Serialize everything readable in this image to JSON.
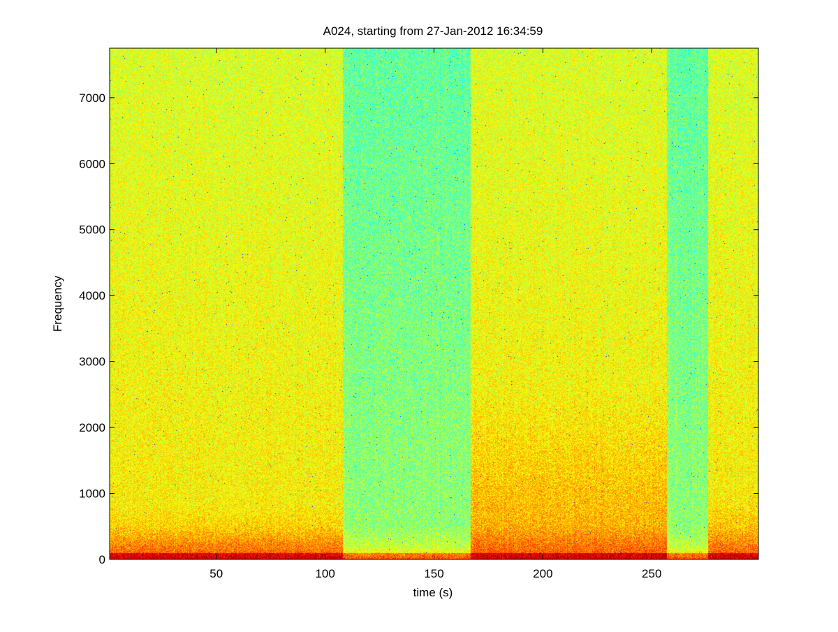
{
  "chart_data": {
    "type": "heatmap",
    "subtype": "spectrogram",
    "title": "A024, starting from 27-Jan-2012 16:34:59",
    "xlabel": "time (s)",
    "ylabel": "Frequency",
    "xlim": [
      1,
      299
    ],
    "ylim": [
      0,
      7750
    ],
    "xticks": [
      50,
      100,
      150,
      200,
      250
    ],
    "yticks": [
      0,
      1000,
      2000,
      3000,
      4000,
      5000,
      6000,
      7000
    ],
    "colormap": "jet",
    "grid": false,
    "legend": "none",
    "colors": {
      "low": "#00ffff",
      "mid": "#80ff80",
      "high": "#ffff00",
      "peak": "#ff8000",
      "max": "#aa0000"
    },
    "time_segments": [
      {
        "t_start": 1,
        "t_end": 108,
        "level": "high",
        "low_freq_hot_band_hz": 800
      },
      {
        "t_start": 108,
        "t_end": 167,
        "level": "low",
        "low_freq_hot_band_hz": 200
      },
      {
        "t_start": 167,
        "t_end": 257,
        "level": "high",
        "low_freq_hot_band_hz": 2600
      },
      {
        "t_start": 257,
        "t_end": 276,
        "level": "low",
        "low_freq_hot_band_hz": 200
      },
      {
        "t_start": 276,
        "t_end": 299,
        "level": "high",
        "low_freq_hot_band_hz": 1000
      }
    ]
  }
}
